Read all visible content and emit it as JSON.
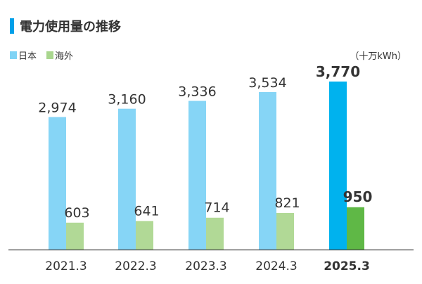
{
  "title": "電力使用量の推移",
  "legend": [
    {
      "label": "日本",
      "color": "#7fd3f5",
      "icon": "square-swatch"
    },
    {
      "label": "海外",
      "color": "#a9d68e",
      "icon": "square-swatch"
    }
  ],
  "unit": "（十万kWh）",
  "colors": {
    "title_marker": "#00a0e9",
    "japan": "#86d5f6",
    "overseas": "#b1d996",
    "japan_highlight": "#00b2ee",
    "overseas_highlight": "#5fb846",
    "axis": "#444444"
  },
  "chart_data": {
    "type": "bar",
    "categories": [
      "2021.3",
      "2022.3",
      "2023.3",
      "2024.3",
      "2025.3"
    ],
    "highlight_index": 4,
    "series": [
      {
        "name": "日本",
        "values": [
          2974,
          3160,
          3336,
          3534,
          3770
        ]
      },
      {
        "name": "海外",
        "values": [
          603,
          641,
          714,
          821,
          950
        ]
      }
    ],
    "value_labels": [
      [
        "2,974",
        "3,160",
        "3,336",
        "3,534",
        "3,770"
      ],
      [
        "603",
        "641",
        "714",
        "821",
        "950"
      ]
    ],
    "ylim": [
      0,
      3770
    ],
    "grid": false,
    "legend_position": "top-left"
  }
}
